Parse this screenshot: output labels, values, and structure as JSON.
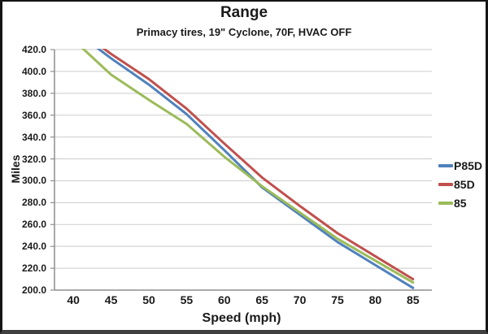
{
  "title": "Range",
  "subtitle": "Primacy tires, 19\" Cyclone, 70F, HVAC OFF",
  "colors": {
    "background": "#FFFFFF",
    "frame_border": "#141414",
    "gridline": "#CBCBCB",
    "axis_line": "#8E8E8E",
    "text": "#1A1A1A"
  },
  "chart_data": {
    "type": "line",
    "title": "Range",
    "subtitle": "Primacy tires, 19\" Cyclone, 70F, HVAC OFF",
    "xlabel": "Speed (mph)",
    "ylabel": "Miles",
    "x": [
      40,
      45,
      50,
      55,
      60,
      65,
      70,
      75,
      80,
      85
    ],
    "xtick_labels": [
      "40",
      "45",
      "50",
      "55",
      "60",
      "65",
      "70",
      "75",
      "80",
      "85"
    ],
    "ylim": [
      200,
      420
    ],
    "ytick_step": 20,
    "ytick_labels": [
      "420.0",
      "400.0",
      "380.0",
      "360.0",
      "340.0",
      "320.0",
      "300.0",
      "280.0",
      "260.0",
      "240.0",
      "220.0",
      "200.0"
    ],
    "grid": "horizontal",
    "legend_position": "right",
    "series": [
      {
        "name": "P85D",
        "color": "#4F81BD",
        "values": [
          438,
          412,
          388,
          361,
          328,
          294,
          269,
          244,
          223,
          202
        ]
      },
      {
        "name": "85D",
        "color": "#C0504D",
        "values": [
          441,
          416,
          393,
          366,
          334,
          303,
          277,
          252,
          231,
          210
        ]
      },
      {
        "name": "85",
        "color": "#9BBB59",
        "values": [
          429,
          397,
          374,
          352,
          322,
          295,
          271,
          247,
          227,
          207
        ]
      }
    ]
  }
}
